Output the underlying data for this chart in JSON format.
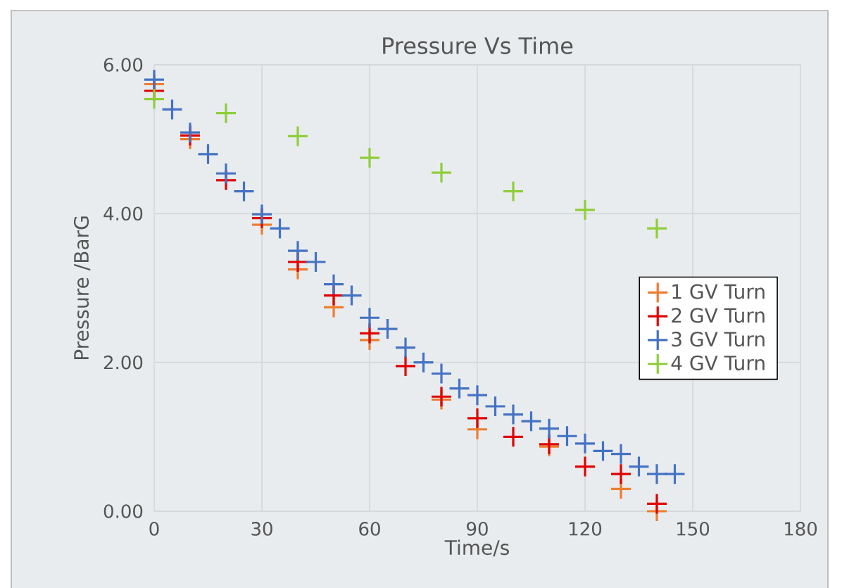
{
  "chart_data": {
    "type": "scatter",
    "title": "Pressure Vs Time",
    "xlabel": "Time/s",
    "ylabel": "Pressure /BarG",
    "xlim": [
      0,
      180
    ],
    "xticks": [
      0,
      30,
      60,
      90,
      120,
      150,
      180
    ],
    "ylim": [
      0,
      6
    ],
    "yticks": [
      {
        "value": 0,
        "label": "0.00"
      },
      {
        "value": 2,
        "label": "2.00"
      },
      {
        "value": 4,
        "label": "4.00"
      },
      {
        "value": 6,
        "label": "6.00"
      }
    ],
    "grid": true,
    "legend": "right",
    "marker": "cross",
    "series": [
      {
        "name": "1 GV Turn",
        "color": "#ed7d31",
        "x": [
          0,
          10,
          20,
          30,
          40,
          50,
          60,
          70,
          80,
          90,
          100,
          110,
          120,
          130,
          140
        ],
        "values": [
          5.74,
          5.0,
          null,
          3.85,
          3.25,
          2.74,
          2.3,
          null,
          1.5,
          1.1,
          null,
          0.87,
          null,
          0.3,
          0.0
        ]
      },
      {
        "name": "2 GV Turn",
        "color": "#e00000",
        "x": [
          0,
          10,
          20,
          30,
          40,
          50,
          60,
          70,
          80,
          90,
          100,
          110,
          120,
          130,
          140
        ],
        "values": [
          5.65,
          5.05,
          4.45,
          3.94,
          3.35,
          2.9,
          2.39,
          1.95,
          1.54,
          1.25,
          1.0,
          0.9,
          0.6,
          0.5,
          0.1
        ]
      },
      {
        "name": "3 GV Turn",
        "color": "#4472c4",
        "x": [
          0,
          5,
          10,
          15,
          20,
          25,
          30,
          35,
          40,
          45,
          50,
          55,
          60,
          65,
          70,
          75,
          80,
          85,
          90,
          95,
          100,
          105,
          110,
          115,
          120,
          125,
          130,
          135,
          140,
          145
        ],
        "values": [
          5.8,
          5.4,
          5.09,
          4.8,
          4.54,
          4.3,
          3.99,
          3.8,
          3.5,
          3.35,
          3.05,
          2.9,
          2.6,
          2.45,
          2.2,
          2.0,
          1.85,
          1.65,
          1.56,
          1.41,
          1.3,
          1.21,
          1.11,
          1.01,
          0.91,
          0.81,
          0.77,
          0.6,
          0.5,
          0.5
        ]
      },
      {
        "name": "4 GV Turn",
        "color": "#8fce3a",
        "x": [
          0,
          20,
          40,
          60,
          80,
          100,
          120,
          140
        ],
        "values": [
          5.54,
          5.35,
          5.04,
          4.75,
          4.55,
          4.3,
          4.05,
          3.8
        ]
      }
    ]
  }
}
